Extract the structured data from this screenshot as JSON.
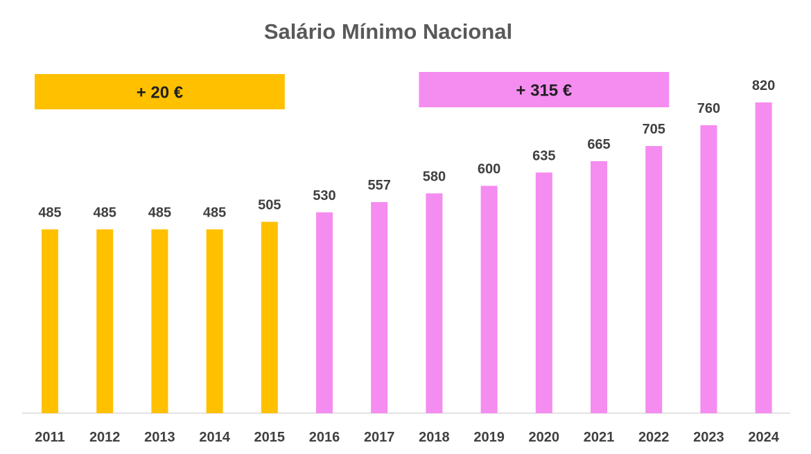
{
  "chart_data": {
    "type": "bar",
    "title": "Salário Mínimo Nacional",
    "xlabel": "",
    "ylabel": "",
    "categories": [
      "2011",
      "2012",
      "2013",
      "2014",
      "2015",
      "2016",
      "2017",
      "2018",
      "2019",
      "2020",
      "2021",
      "2022",
      "2023",
      "2024"
    ],
    "values": [
      485,
      485,
      485,
      485,
      505,
      530,
      557,
      580,
      600,
      635,
      665,
      705,
      760,
      820
    ],
    "ylim": [
      0,
      820
    ],
    "grid": false,
    "legend": "none",
    "colors": {
      "period_1": "#FFC000",
      "period_2": "#F58CF0",
      "axis": "#D9D9D9"
    },
    "bar_colors": [
      "period_1",
      "period_1",
      "period_1",
      "period_1",
      "period_1",
      "period_2",
      "period_2",
      "period_2",
      "period_2",
      "period_2",
      "period_2",
      "period_2",
      "period_2",
      "period_2"
    ],
    "annotations": [
      {
        "text": "+ 20 €",
        "color": "period_1",
        "from": "2011",
        "to": "2015"
      },
      {
        "text": "+ 315 €",
        "color": "period_2",
        "from": "2018",
        "to": "2022"
      }
    ]
  }
}
